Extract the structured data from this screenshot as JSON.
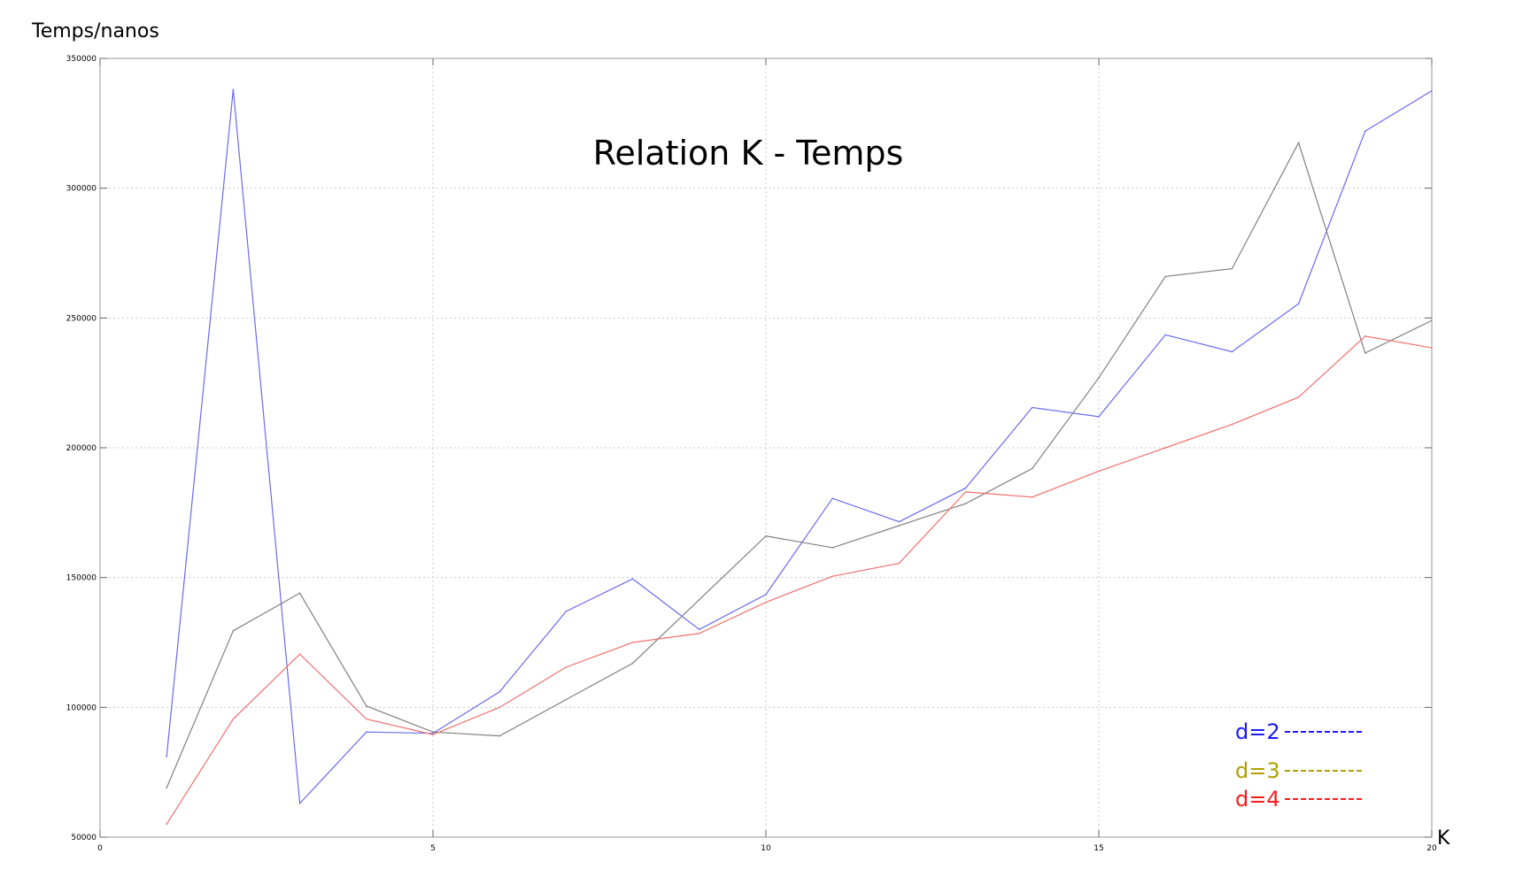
{
  "chart_data": {
    "type": "line",
    "title": "Relation K - Temps",
    "xlabel": "K",
    "ylabel": "Temps/nanos",
    "xlim": [
      0,
      20
    ],
    "ylim": [
      50000,
      350000
    ],
    "x_ticks": [
      0,
      5,
      10,
      15,
      20
    ],
    "x_tick_labels": [
      "0",
      "5",
      "10",
      "15",
      "20"
    ],
    "y_ticks": [
      50000,
      100000,
      150000,
      200000,
      250000,
      300000,
      350000
    ],
    "y_tick_labels": [
      "50000",
      "100000",
      "150000",
      "200000",
      "250000",
      "300000",
      "350000"
    ],
    "grid": true,
    "legend_position": "bottom-right",
    "x": [
      1,
      2,
      3,
      4,
      5,
      6,
      7,
      8,
      9,
      10,
      11,
      12,
      13,
      14,
      15,
      16,
      17,
      18,
      19,
      20
    ],
    "series": [
      {
        "name": "d=2",
        "color": "#6a6af0",
        "label_color": "#1a1aff",
        "values": [
          81000,
          338000,
          63000,
          90500,
          90000,
          106000,
          137000,
          149500,
          130000,
          143500,
          180500,
          171500,
          184500,
          215500,
          212000,
          243500,
          237000,
          255500,
          322000,
          337500
        ]
      },
      {
        "name": "d=3",
        "color": "#808080",
        "label_color": "#b0a000",
        "values": [
          69000,
          129500,
          144000,
          100500,
          90500,
          89000,
          103000,
          117000,
          141500,
          166000,
          161500,
          170000,
          178500,
          192000,
          227000,
          266000,
          269000,
          317500,
          236500,
          249000
        ]
      },
      {
        "name": "d=4",
        "color": "#f07070",
        "label_color": "#ff1a1a",
        "values": [
          55000,
          95500,
          120500,
          95500,
          89500,
          100000,
          115500,
          125000,
          128500,
          140500,
          150500,
          155500,
          183000,
          181000,
          191000,
          200000,
          209000,
          219500,
          243000,
          238500
        ]
      }
    ]
  }
}
